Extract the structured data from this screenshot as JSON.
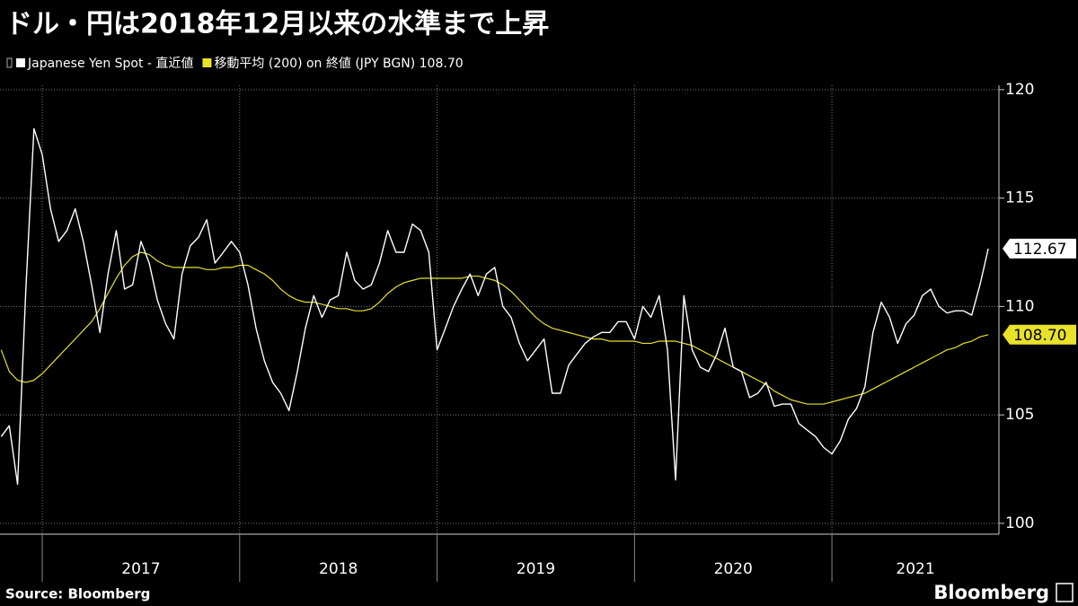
{
  "chart_data": {
    "type": "line",
    "title": "ドル・円は2018年12月以来の水準まで上昇",
    "source": "Source:  Bloomberg",
    "brand": "Bloomberg",
    "x": [
      2016.792,
      2016.833,
      2016.875,
      2016.917,
      2016.958,
      2017,
      2017.042,
      2017.083,
      2017.125,
      2017.167,
      2017.208,
      2017.25,
      2017.292,
      2017.333,
      2017.375,
      2017.417,
      2017.458,
      2017.5,
      2017.542,
      2017.583,
      2017.625,
      2017.667,
      2017.708,
      2017.75,
      2017.792,
      2017.833,
      2017.875,
      2017.917,
      2017.958,
      2018,
      2018.042,
      2018.083,
      2018.125,
      2018.167,
      2018.208,
      2018.25,
      2018.292,
      2018.333,
      2018.375,
      2018.417,
      2018.458,
      2018.5,
      2018.542,
      2018.583,
      2018.625,
      2018.667,
      2018.708,
      2018.75,
      2018.792,
      2018.833,
      2018.875,
      2018.917,
      2018.958,
      2019,
      2019.042,
      2019.083,
      2019.125,
      2019.167,
      2019.208,
      2019.25,
      2019.292,
      2019.333,
      2019.375,
      2019.417,
      2019.458,
      2019.5,
      2019.542,
      2019.583,
      2019.625,
      2019.667,
      2019.708,
      2019.75,
      2019.792,
      2019.833,
      2019.875,
      2019.917,
      2019.958,
      2020,
      2020.042,
      2020.083,
      2020.125,
      2020.167,
      2020.208,
      2020.25,
      2020.292,
      2020.333,
      2020.375,
      2020.417,
      2020.458,
      2020.5,
      2020.542,
      2020.583,
      2020.625,
      2020.667,
      2020.708,
      2020.75,
      2020.792,
      2020.833,
      2020.875,
      2020.917,
      2020.958,
      2021,
      2021.042,
      2021.083,
      2021.125,
      2021.167,
      2021.208,
      2021.25,
      2021.292,
      2021.333,
      2021.375,
      2021.417,
      2021.458,
      2021.5,
      2021.542,
      2021.583,
      2021.625,
      2021.667,
      2021.708,
      2021.75,
      2021.792
    ],
    "series": [
      {
        "name": "Japanese Yen Spot - 直近値",
        "color": "#ffffff",
        "values": [
          104.0,
          104.5,
          101.8,
          110.8,
          118.2,
          117.0,
          114.5,
          113.0,
          113.5,
          114.5,
          113.0,
          111.0,
          108.8,
          111.5,
          113.5,
          110.8,
          111.0,
          113.0,
          112.0,
          110.3,
          109.2,
          108.5,
          111.5,
          112.8,
          113.2,
          114.0,
          112.0,
          112.5,
          113.0,
          112.5,
          111.0,
          109.0,
          107.5,
          106.5,
          106.0,
          105.2,
          107.0,
          109.0,
          110.5,
          109.5,
          110.3,
          110.5,
          112.5,
          111.2,
          110.8,
          111.0,
          112.0,
          113.5,
          112.5,
          112.5,
          113.8,
          113.5,
          112.5,
          108.0,
          109.0,
          110.0,
          110.8,
          111.5,
          110.5,
          111.5,
          111.8,
          110.0,
          109.5,
          108.3,
          107.5,
          108.0,
          108.5,
          106.0,
          106.0,
          107.3,
          107.8,
          108.3,
          108.6,
          108.8,
          108.8,
          109.3,
          109.3,
          108.5,
          110.0,
          109.5,
          110.5,
          108.0,
          102.0,
          110.5,
          108.0,
          107.2,
          107.0,
          107.8,
          109.0,
          107.2,
          107.0,
          105.8,
          106.0,
          106.5,
          105.4,
          105.5,
          105.5,
          104.6,
          104.3,
          104.0,
          103.5,
          103.2,
          103.8,
          104.8,
          105.3,
          106.3,
          108.8,
          110.2,
          109.5,
          108.3,
          109.2,
          109.6,
          110.5,
          110.8,
          110.0,
          109.7,
          109.8,
          109.8,
          109.6,
          111.0,
          112.67
        ]
      },
      {
        "name": "移動平均 (200) on 終値 (JPY BGN) 108.70",
        "color": "#e8e22a",
        "values": [
          108.0,
          107.0,
          106.6,
          106.5,
          106.6,
          106.9,
          107.3,
          107.7,
          108.1,
          108.5,
          108.9,
          109.3,
          109.9,
          110.6,
          111.3,
          111.9,
          112.3,
          112.5,
          112.4,
          112.1,
          111.9,
          111.8,
          111.8,
          111.8,
          111.8,
          111.7,
          111.7,
          111.8,
          111.8,
          111.9,
          111.9,
          111.7,
          111.5,
          111.2,
          110.8,
          110.5,
          110.3,
          110.2,
          110.2,
          110.1,
          110.0,
          109.9,
          109.9,
          109.8,
          109.8,
          109.9,
          110.2,
          110.6,
          110.9,
          111.1,
          111.2,
          111.3,
          111.3,
          111.3,
          111.3,
          111.3,
          111.3,
          111.4,
          111.4,
          111.3,
          111.2,
          111.0,
          110.7,
          110.3,
          109.9,
          109.5,
          109.2,
          109.0,
          108.9,
          108.8,
          108.7,
          108.6,
          108.5,
          108.5,
          108.4,
          108.4,
          108.4,
          108.4,
          108.3,
          108.3,
          108.4,
          108.4,
          108.4,
          108.3,
          108.2,
          108.0,
          107.8,
          107.6,
          107.4,
          107.2,
          107.0,
          106.8,
          106.6,
          106.4,
          106.1,
          105.9,
          105.7,
          105.6,
          105.5,
          105.5,
          105.5,
          105.6,
          105.7,
          105.8,
          105.9,
          106.0,
          106.2,
          106.4,
          106.6,
          106.8,
          107.0,
          107.2,
          107.4,
          107.6,
          107.8,
          108.0,
          108.1,
          108.3,
          108.4,
          108.6,
          108.7
        ],
        "value_labels": [
          null,
          null,
          null,
          null,
          null,
          null,
          null,
          null,
          null,
          null,
          null,
          null,
          null,
          null,
          null,
          null,
          null,
          null,
          null,
          null,
          null,
          null,
          null,
          null,
          null,
          null,
          null,
          null,
          null,
          null,
          null,
          null,
          null,
          null,
          null,
          null,
          null,
          null,
          null,
          null,
          null,
          null,
          null,
          null,
          null,
          null,
          null,
          null,
          null,
          null,
          null,
          null,
          null,
          null,
          null,
          null,
          null,
          null,
          null,
          null,
          null,
          null,
          null,
          null,
          null,
          null,
          null,
          null,
          null,
          null,
          null,
          null,
          null,
          null,
          null,
          null,
          null,
          null,
          null,
          null,
          null,
          null,
          null,
          null,
          null,
          null,
          null,
          null,
          null,
          null,
          null,
          null,
          null,
          null,
          null,
          null,
          null,
          null,
          null,
          null,
          null,
          null,
          null,
          null,
          null,
          null,
          null,
          null,
          null,
          null,
          null,
          null,
          null,
          null,
          null,
          null,
          null,
          null,
          null,
          null,
          "108.70"
        ]
      }
    ],
    "xlim": [
      2016.786,
      2021.846
    ],
    "xticks": [
      {
        "value": 2017,
        "label": "2017"
      },
      {
        "value": 2018,
        "label": "2018"
      },
      {
        "value": 2019,
        "label": "2019"
      },
      {
        "value": 2020,
        "label": "2020"
      },
      {
        "value": 2021,
        "label": "2021"
      }
    ],
    "ylim": [
      99.5,
      120.2
    ],
    "yticks": [
      100,
      105,
      110,
      115,
      120
    ],
    "grid": true
  }
}
